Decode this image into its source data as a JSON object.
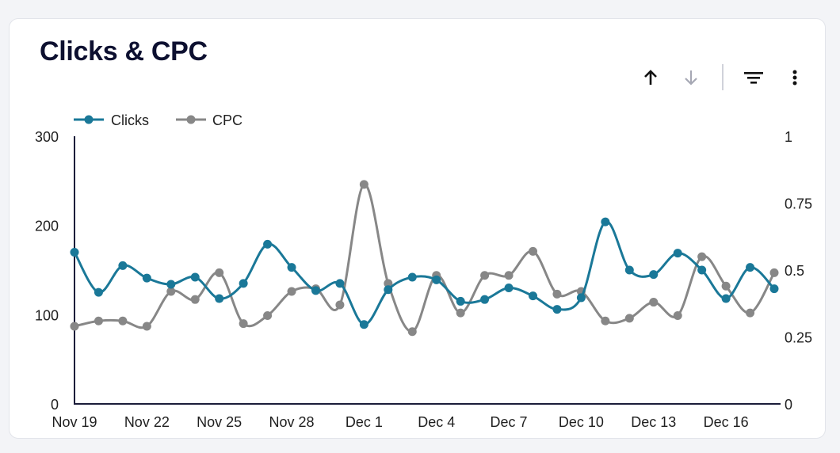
{
  "card": {
    "title": "Clicks & CPC"
  },
  "toolbar": {
    "sort_up_icon": "arrow-up-icon",
    "sort_down_icon": "arrow-down-icon",
    "filter_icon": "filter-icon",
    "more_icon": "more-vert-icon"
  },
  "colors": {
    "clicks": "#1a7898",
    "cpc": "#878787",
    "axis": "#1b1d3a",
    "text": "#1f1f1f"
  },
  "chart_data": {
    "type": "line",
    "title": "Clicks & CPC",
    "x": [
      "Nov 19",
      "Nov 20",
      "Nov 21",
      "Nov 22",
      "Nov 23",
      "Nov 24",
      "Nov 25",
      "Nov 26",
      "Nov 27",
      "Nov 28",
      "Nov 29",
      "Nov 30",
      "Dec 1",
      "Dec 2",
      "Dec 3",
      "Dec 4",
      "Dec 5",
      "Dec 6",
      "Dec 7",
      "Dec 8",
      "Dec 9",
      "Dec 10",
      "Dec 11",
      "Dec 12",
      "Dec 13",
      "Dec 14",
      "Dec 15",
      "Dec 16",
      "Dec 17",
      "Dec 18"
    ],
    "x_tick_labels": [
      "Nov 19",
      "Nov 22",
      "Nov 25",
      "Nov 28",
      "Dec 1",
      "Dec 4",
      "Dec 7",
      "Dec 10",
      "Dec 13",
      "Dec 16"
    ],
    "legend": [
      "Clicks",
      "CPC"
    ],
    "legend_position": "top-left",
    "y_left": {
      "range": [
        0,
        300
      ],
      "ticks": [
        "0",
        "100",
        "200",
        "300"
      ]
    },
    "y_right": {
      "range": [
        0,
        1
      ],
      "ticks": [
        "0",
        "0.25",
        "0.5",
        "0.75",
        "1"
      ]
    },
    "series": [
      {
        "name": "Clicks",
        "axis": "left",
        "values": [
          170,
          125,
          155,
          141,
          134,
          142,
          118,
          135,
          179,
          153,
          127,
          135,
          89,
          128,
          142,
          139,
          115,
          117,
          130,
          121,
          106,
          119,
          204,
          150,
          145,
          169,
          150,
          118,
          153,
          129
        ]
      },
      {
        "name": "CPC",
        "axis": "right",
        "values": [
          0.29,
          0.31,
          0.31,
          0.29,
          0.42,
          0.39,
          0.49,
          0.3,
          0.33,
          0.42,
          0.43,
          0.37,
          0.82,
          0.45,
          0.27,
          0.48,
          0.34,
          0.48,
          0.48,
          0.57,
          0.41,
          0.42,
          0.31,
          0.32,
          0.38,
          0.33,
          0.55,
          0.44,
          0.34,
          0.49
        ]
      }
    ]
  }
}
